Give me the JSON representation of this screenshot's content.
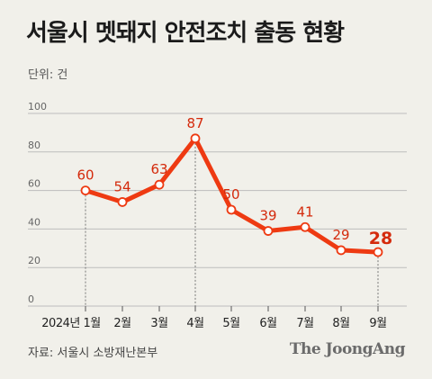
{
  "header": {
    "title": "서울시 멧돼지 안전조치 출동 현황",
    "unit": "단위: 건"
  },
  "footer": {
    "source": "자료: 서울시 소방재난본부",
    "brand": "The JoongAng"
  },
  "colors": {
    "line": "#ee3a12",
    "label": "#d42a0c",
    "axis": "#666666",
    "grid": "#bdbdbd"
  },
  "chart_data": {
    "type": "line",
    "categories": [
      "2024년 1월",
      "2월",
      "3월",
      "4월",
      "5월",
      "6월",
      "7월",
      "8월",
      "9월"
    ],
    "values": [
      60,
      54,
      63,
      87,
      50,
      39,
      41,
      29,
      28
    ],
    "yticks": [
      0,
      20,
      40,
      60,
      80,
      100
    ],
    "ylim": [
      0,
      100
    ],
    "highlight_index": 8,
    "dotted_guides": [
      0,
      3,
      8
    ],
    "grid": true
  }
}
